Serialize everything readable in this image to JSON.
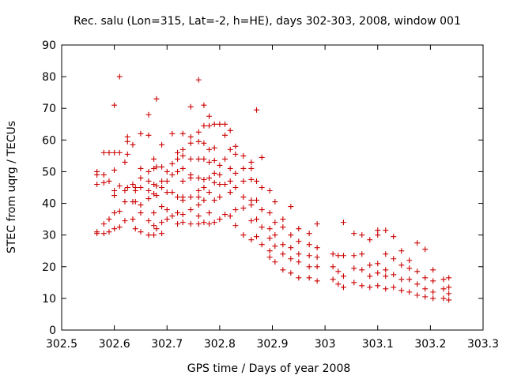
{
  "colors": {
    "series": "#cc0000",
    "axis": "#000000",
    "background": "#ffffff"
  },
  "chart_data": {
    "type": "scatter",
    "title": "Rec. salu (Lon=315, Lat=-2, h=HE), days 302-303, 2008, window 001",
    "xlabel": "GPS time / Days of year 2008",
    "ylabel": "STEC from uqrg / TECUs",
    "xlim": [
      302.5,
      303.3
    ],
    "ylim": [
      0,
      90
    ],
    "grid": false,
    "legend": "none",
    "marker": "plus",
    "x_ticks": [
      302.5,
      302.6,
      302.7,
      302.8,
      302.9,
      303,
      303.1,
      303.2,
      303.3
    ],
    "x_tick_labels": [
      "302.5",
      "302.6",
      "302.7",
      "302.8",
      "302.9",
      "303",
      "303.1",
      "303.2",
      "303.3"
    ],
    "y_ticks": [
      0,
      10,
      20,
      30,
      40,
      50,
      60,
      70,
      80,
      90
    ],
    "y_tick_labels": [
      "0",
      "10",
      "20",
      "30",
      "40",
      "50",
      "60",
      "70",
      "80",
      "90"
    ],
    "series": [
      {
        "name": "STEC",
        "points": [
          [
            302.567,
            30.5
          ],
          [
            302.567,
            31.0
          ],
          [
            302.567,
            46.0
          ],
          [
            302.567,
            49.0
          ],
          [
            302.567,
            50.0
          ],
          [
            302.58,
            30.5
          ],
          [
            302.58,
            33.5
          ],
          [
            302.58,
            46.5
          ],
          [
            302.58,
            49.0
          ],
          [
            302.58,
            56.0
          ],
          [
            302.59,
            31.0
          ],
          [
            302.59,
            35.0
          ],
          [
            302.59,
            47.0
          ],
          [
            302.59,
            56.0
          ],
          [
            302.6,
            32.0
          ],
          [
            302.6,
            37.0
          ],
          [
            302.6,
            42.5
          ],
          [
            302.6,
            44.0
          ],
          [
            302.6,
            50.5
          ],
          [
            302.6,
            56.0
          ],
          [
            302.6,
            71.0
          ],
          [
            302.61,
            32.5
          ],
          [
            302.61,
            37.5
          ],
          [
            302.61,
            45.5
          ],
          [
            302.61,
            56.0
          ],
          [
            302.61,
            80.0
          ],
          [
            302.62,
            34.5
          ],
          [
            302.62,
            40.5
          ],
          [
            302.62,
            44.0
          ],
          [
            302.62,
            53.0
          ],
          [
            302.625,
            45.0
          ],
          [
            302.625,
            55.5
          ],
          [
            302.625,
            59.5
          ],
          [
            302.625,
            61.0
          ],
          [
            302.635,
            35.0
          ],
          [
            302.635,
            40.5
          ],
          [
            302.635,
            46.0
          ],
          [
            302.635,
            58.5
          ],
          [
            302.64,
            32.0
          ],
          [
            302.64,
            40.5
          ],
          [
            302.64,
            44.0
          ],
          [
            302.64,
            45.0
          ],
          [
            302.65,
            31.0
          ],
          [
            302.65,
            37.0
          ],
          [
            302.65,
            39.5
          ],
          [
            302.65,
            45.0
          ],
          [
            302.65,
            48.0
          ],
          [
            302.65,
            51.0
          ],
          [
            302.65,
            62.0
          ],
          [
            302.665,
            30.0
          ],
          [
            302.665,
            34.5
          ],
          [
            302.665,
            41.5
          ],
          [
            302.665,
            44.0
          ],
          [
            302.665,
            47.0
          ],
          [
            302.665,
            50.0
          ],
          [
            302.665,
            61.5
          ],
          [
            302.665,
            68.0
          ],
          [
            302.675,
            30.0
          ],
          [
            302.675,
            33.0
          ],
          [
            302.675,
            37.0
          ],
          [
            302.675,
            43.0
          ],
          [
            302.675,
            46.0
          ],
          [
            302.675,
            51.0
          ],
          [
            302.675,
            54.0
          ],
          [
            302.68,
            32.0
          ],
          [
            302.68,
            42.5
          ],
          [
            302.68,
            45.5
          ],
          [
            302.68,
            51.5
          ],
          [
            302.68,
            73.0
          ],
          [
            302.69,
            30.5
          ],
          [
            302.69,
            34.0
          ],
          [
            302.69,
            39.0
          ],
          [
            302.69,
            45.0
          ],
          [
            302.69,
            47.0
          ],
          [
            302.69,
            51.5
          ],
          [
            302.69,
            58.5
          ],
          [
            302.7,
            35.0
          ],
          [
            302.7,
            38.0
          ],
          [
            302.7,
            43.5
          ],
          [
            302.7,
            47.0
          ],
          [
            302.7,
            50.0
          ],
          [
            302.71,
            36.0
          ],
          [
            302.71,
            43.5
          ],
          [
            302.71,
            49.0
          ],
          [
            302.71,
            52.5
          ],
          [
            302.71,
            62.0
          ],
          [
            302.72,
            33.5
          ],
          [
            302.72,
            37.0
          ],
          [
            302.72,
            42.0
          ],
          [
            302.72,
            50.0
          ],
          [
            302.72,
            54.0
          ],
          [
            302.72,
            56.0
          ],
          [
            302.73,
            34.0
          ],
          [
            302.73,
            36.5
          ],
          [
            302.73,
            41.0
          ],
          [
            302.73,
            42.0
          ],
          [
            302.73,
            47.0
          ],
          [
            302.73,
            51.0
          ],
          [
            302.73,
            55.0
          ],
          [
            302.73,
            57.0
          ],
          [
            302.73,
            62.0
          ],
          [
            302.745,
            33.5
          ],
          [
            302.745,
            38.0
          ],
          [
            302.745,
            42.0
          ],
          [
            302.745,
            48.0
          ],
          [
            302.745,
            49.0
          ],
          [
            302.745,
            54.0
          ],
          [
            302.745,
            59.0
          ],
          [
            302.745,
            61.0
          ],
          [
            302.745,
            70.5
          ],
          [
            302.76,
            33.5
          ],
          [
            302.76,
            36.0
          ],
          [
            302.76,
            39.5
          ],
          [
            302.76,
            42.0
          ],
          [
            302.76,
            44.0
          ],
          [
            302.76,
            48.0
          ],
          [
            302.76,
            54.0
          ],
          [
            302.76,
            59.5
          ],
          [
            302.76,
            62.5
          ],
          [
            302.76,
            79.0
          ],
          [
            302.77,
            34.0
          ],
          [
            302.77,
            41.0
          ],
          [
            302.77,
            45.0
          ],
          [
            302.77,
            47.5
          ],
          [
            302.77,
            54.0
          ],
          [
            302.77,
            59.0
          ],
          [
            302.77,
            64.5
          ],
          [
            302.77,
            71.0
          ],
          [
            302.78,
            33.5
          ],
          [
            302.78,
            37.0
          ],
          [
            302.78,
            43.5
          ],
          [
            302.78,
            48.0
          ],
          [
            302.78,
            53.0
          ],
          [
            302.78,
            57.0
          ],
          [
            302.78,
            64.5
          ],
          [
            302.78,
            67.5
          ],
          [
            302.79,
            34.0
          ],
          [
            302.79,
            41.0
          ],
          [
            302.79,
            46.5
          ],
          [
            302.79,
            49.5
          ],
          [
            302.79,
            53.5
          ],
          [
            302.79,
            57.5
          ],
          [
            302.79,
            65.0
          ],
          [
            302.8,
            35.0
          ],
          [
            302.8,
            42.0
          ],
          [
            302.8,
            46.0
          ],
          [
            302.8,
            49.0
          ],
          [
            302.8,
            52.0
          ],
          [
            302.8,
            65.0
          ],
          [
            302.81,
            36.5
          ],
          [
            302.81,
            46.0
          ],
          [
            302.81,
            54.0
          ],
          [
            302.81,
            61.5
          ],
          [
            302.81,
            65.0
          ],
          [
            302.82,
            36.0
          ],
          [
            302.82,
            43.5
          ],
          [
            302.82,
            47.0
          ],
          [
            302.82,
            51.0
          ],
          [
            302.82,
            57.0
          ],
          [
            302.82,
            63.0
          ],
          [
            302.83,
            33.0
          ],
          [
            302.83,
            38.0
          ],
          [
            302.83,
            45.0
          ],
          [
            302.83,
            49.5
          ],
          [
            302.83,
            55.5
          ],
          [
            302.83,
            58.0
          ],
          [
            302.845,
            30.0
          ],
          [
            302.845,
            38.5
          ],
          [
            302.845,
            42.0
          ],
          [
            302.845,
            47.0
          ],
          [
            302.845,
            51.0
          ],
          [
            302.845,
            55.0
          ],
          [
            302.86,
            28.5
          ],
          [
            302.86,
            34.5
          ],
          [
            302.86,
            39.5
          ],
          [
            302.86,
            41.0
          ],
          [
            302.86,
            47.5
          ],
          [
            302.86,
            51.0
          ],
          [
            302.86,
            53.0
          ],
          [
            302.87,
            29.5
          ],
          [
            302.87,
            35.0
          ],
          [
            302.87,
            41.0
          ],
          [
            302.87,
            47.0
          ],
          [
            302.87,
            69.5
          ],
          [
            302.88,
            27.0
          ],
          [
            302.88,
            32.5
          ],
          [
            302.88,
            38.0
          ],
          [
            302.88,
            45.0
          ],
          [
            302.88,
            54.5
          ],
          [
            302.895,
            23.0
          ],
          [
            302.895,
            25.0
          ],
          [
            302.895,
            29.0
          ],
          [
            302.895,
            32.0
          ],
          [
            302.895,
            37.0
          ],
          [
            302.895,
            44.0
          ],
          [
            302.905,
            21.5
          ],
          [
            302.905,
            26.5
          ],
          [
            302.905,
            30.0
          ],
          [
            302.905,
            34.0
          ],
          [
            302.905,
            40.5
          ],
          [
            302.92,
            19.0
          ],
          [
            302.92,
            24.0
          ],
          [
            302.92,
            27.0
          ],
          [
            302.92,
            32.5
          ],
          [
            302.92,
            35.0
          ],
          [
            302.935,
            18.0
          ],
          [
            302.935,
            22.5
          ],
          [
            302.935,
            26.0
          ],
          [
            302.935,
            30.0
          ],
          [
            302.935,
            39.0
          ],
          [
            302.95,
            16.5
          ],
          [
            302.95,
            21.5
          ],
          [
            302.95,
            24.0
          ],
          [
            302.95,
            28.0
          ],
          [
            302.95,
            32.0
          ],
          [
            302.97,
            16.5
          ],
          [
            302.97,
            20.0
          ],
          [
            302.97,
            23.5
          ],
          [
            302.97,
            27.0
          ],
          [
            302.97,
            30.5
          ],
          [
            302.985,
            15.5
          ],
          [
            302.985,
            20.0
          ],
          [
            302.985,
            23.0
          ],
          [
            302.985,
            26.0
          ],
          [
            302.985,
            33.5
          ],
          [
            303.015,
            16.0
          ],
          [
            303.015,
            20.0
          ],
          [
            303.015,
            24.0
          ],
          [
            303.025,
            14.5
          ],
          [
            303.025,
            18.5
          ],
          [
            303.025,
            23.5
          ],
          [
            303.035,
            13.5
          ],
          [
            303.035,
            17.0
          ],
          [
            303.035,
            23.5
          ],
          [
            303.035,
            34.0
          ],
          [
            303.055,
            15.0
          ],
          [
            303.055,
            19.5
          ],
          [
            303.055,
            23.5
          ],
          [
            303.055,
            30.5
          ],
          [
            303.07,
            14.0
          ],
          [
            303.07,
            19.0
          ],
          [
            303.07,
            24.0
          ],
          [
            303.07,
            30.0
          ],
          [
            303.085,
            13.5
          ],
          [
            303.085,
            17.0
          ],
          [
            303.085,
            20.5
          ],
          [
            303.085,
            28.5
          ],
          [
            303.1,
            14.0
          ],
          [
            303.1,
            18.0
          ],
          [
            303.1,
            21.0
          ],
          [
            303.1,
            30.0
          ],
          [
            303.1,
            31.5
          ],
          [
            303.115,
            13.0
          ],
          [
            303.115,
            17.0
          ],
          [
            303.115,
            19.0
          ],
          [
            303.115,
            24.0
          ],
          [
            303.115,
            31.5
          ],
          [
            303.13,
            13.5
          ],
          [
            303.13,
            17.5
          ],
          [
            303.13,
            22.5
          ],
          [
            303.13,
            29.5
          ],
          [
            303.145,
            12.5
          ],
          [
            303.145,
            16.0
          ],
          [
            303.145,
            20.5
          ],
          [
            303.145,
            25.0
          ],
          [
            303.16,
            12.0
          ],
          [
            303.16,
            16.0
          ],
          [
            303.16,
            19.5
          ],
          [
            303.16,
            22.0
          ],
          [
            303.175,
            11.0
          ],
          [
            303.175,
            14.5
          ],
          [
            303.175,
            18.5
          ],
          [
            303.175,
            27.5
          ],
          [
            303.19,
            10.5
          ],
          [
            303.19,
            13.0
          ],
          [
            303.19,
            16.5
          ],
          [
            303.19,
            25.5
          ],
          [
            303.205,
            10.0
          ],
          [
            303.205,
            12.0
          ],
          [
            303.205,
            15.5
          ],
          [
            303.205,
            19.0
          ],
          [
            303.225,
            10.0
          ],
          [
            303.225,
            13.0
          ],
          [
            303.225,
            16.0
          ],
          [
            303.235,
            9.5
          ],
          [
            303.235,
            11.5
          ],
          [
            303.235,
            13.5
          ],
          [
            303.235,
            16.5
          ]
        ]
      }
    ]
  }
}
